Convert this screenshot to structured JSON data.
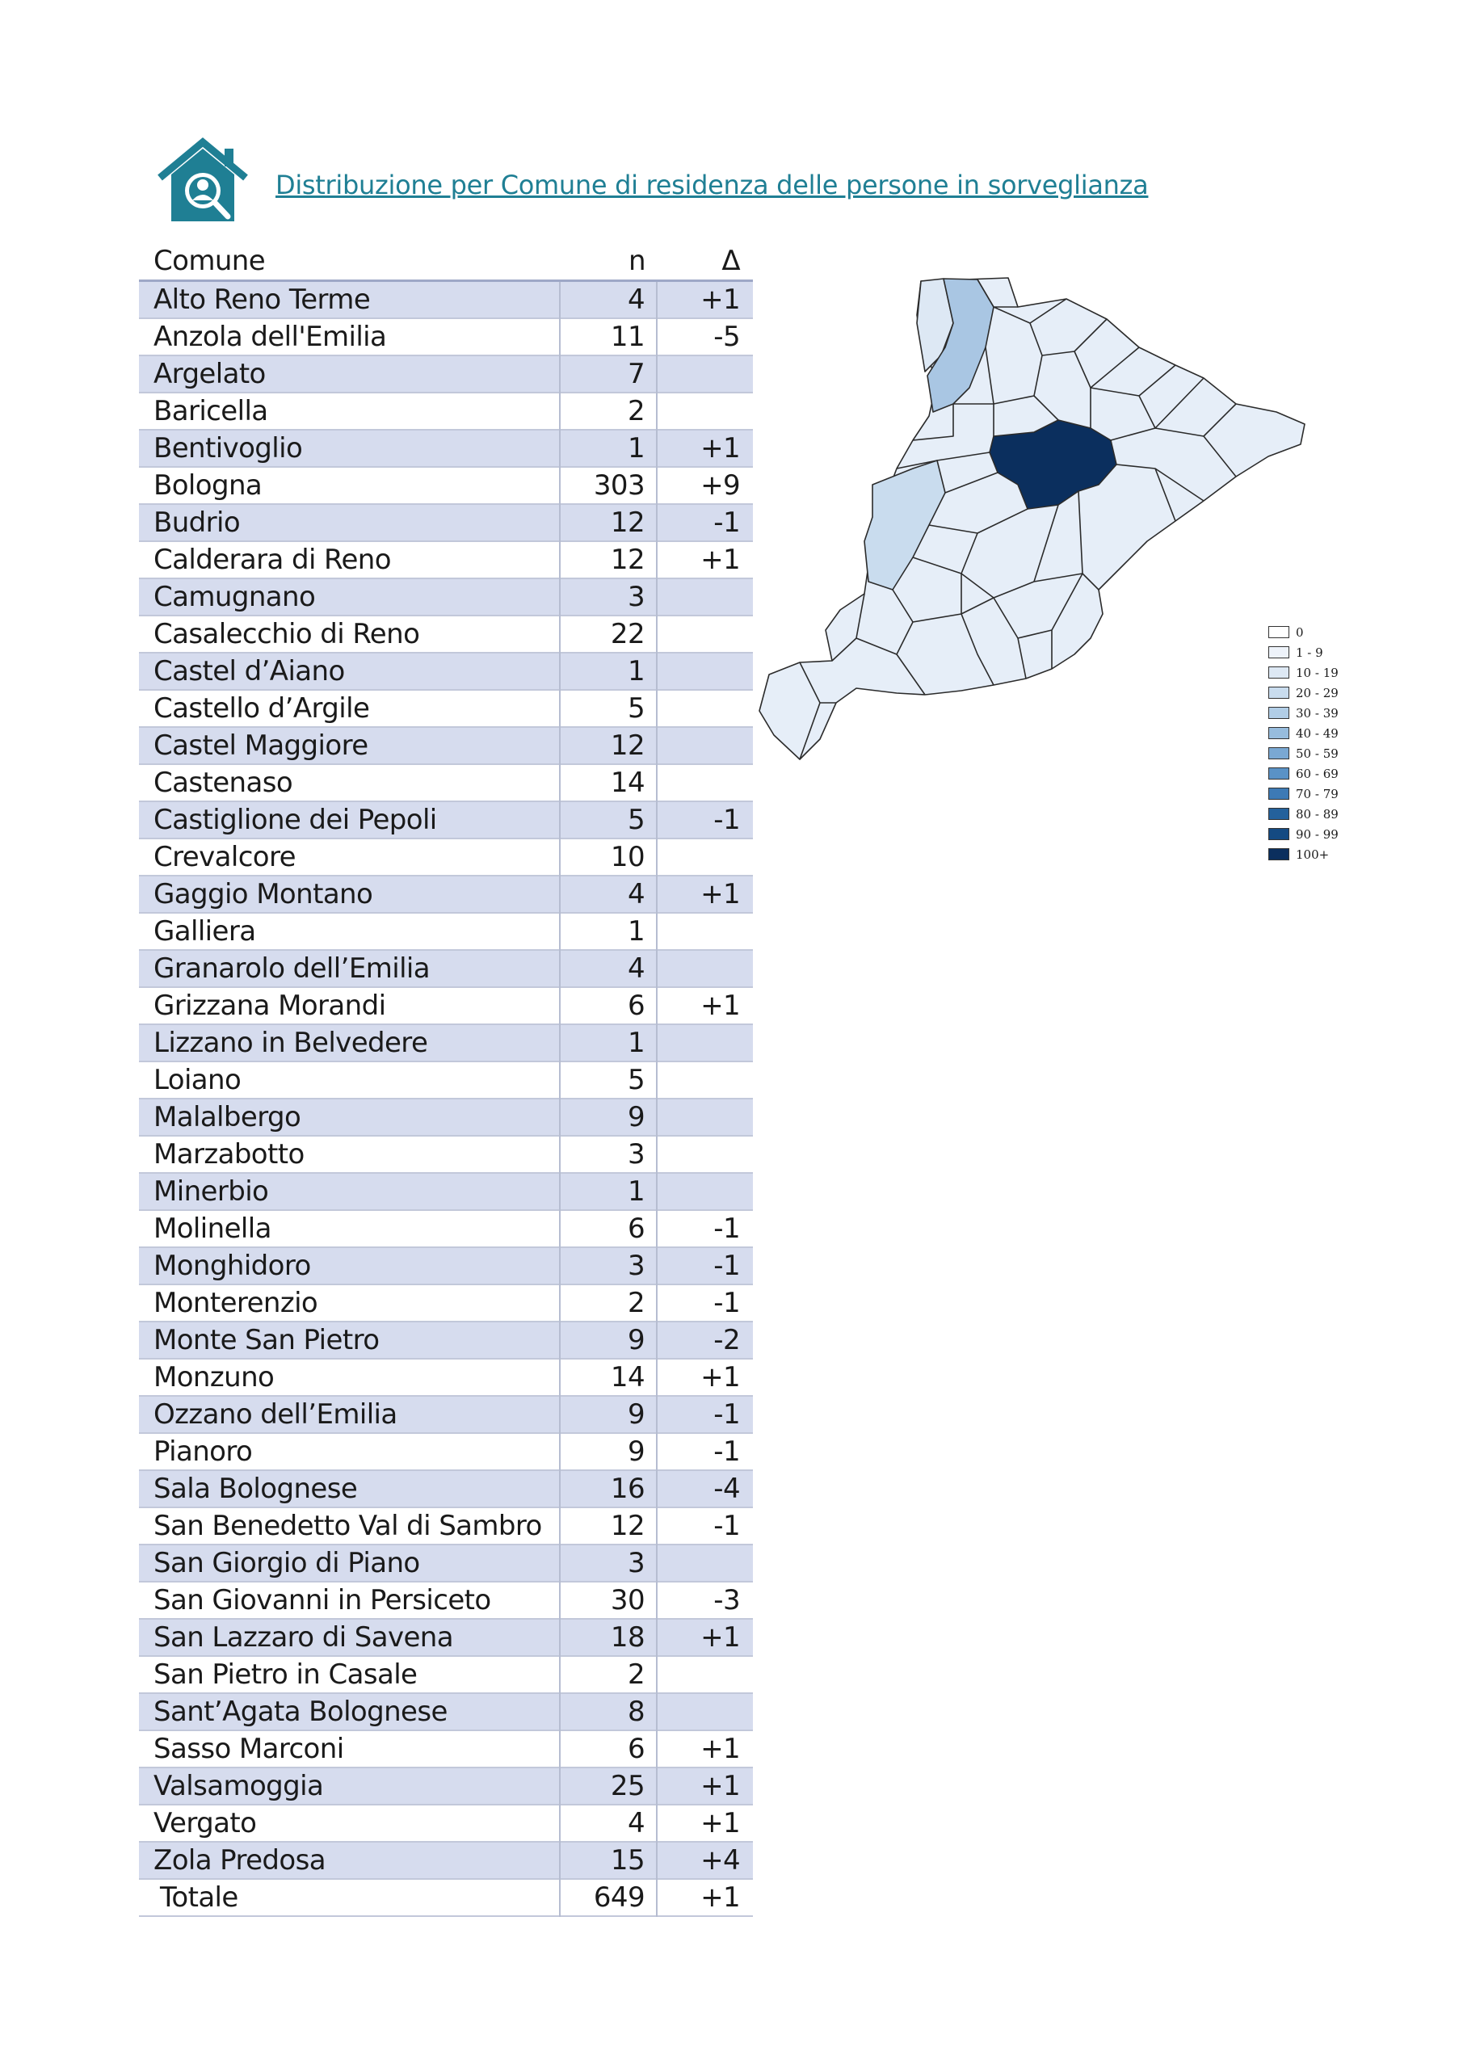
{
  "header": {
    "title": "Distribuzione per Comune di residenza delle persone in sorveglianza",
    "icon": "house-person-icon"
  },
  "table": {
    "columns": [
      "Comune",
      "n",
      "Δ"
    ],
    "rows": [
      [
        "Alto Reno Terme",
        "4",
        "+1"
      ],
      [
        "Anzola dell'Emilia",
        "11",
        "-5"
      ],
      [
        "Argelato",
        "7",
        ""
      ],
      [
        "Baricella",
        "2",
        ""
      ],
      [
        "Bentivoglio",
        "1",
        "+1"
      ],
      [
        "Bologna",
        "303",
        "+9"
      ],
      [
        "Budrio",
        "12",
        "-1"
      ],
      [
        "Calderara di Reno",
        "12",
        "+1"
      ],
      [
        "Camugnano",
        "3",
        ""
      ],
      [
        "Casalecchio di Reno",
        "22",
        ""
      ],
      [
        "Castel d’Aiano",
        "1",
        ""
      ],
      [
        "Castello d’Argile",
        "5",
        ""
      ],
      [
        "Castel Maggiore",
        "12",
        ""
      ],
      [
        "Castenaso",
        "14",
        ""
      ],
      [
        "Castiglione dei Pepoli",
        "5",
        "-1"
      ],
      [
        "Crevalcore",
        "10",
        ""
      ],
      [
        "Gaggio Montano",
        "4",
        "+1"
      ],
      [
        "Galliera",
        "1",
        ""
      ],
      [
        "Granarolo dell’Emilia",
        "4",
        ""
      ],
      [
        "Grizzana Morandi",
        "6",
        "+1"
      ],
      [
        "Lizzano in Belvedere",
        "1",
        ""
      ],
      [
        "Loiano",
        "5",
        ""
      ],
      [
        "Malalbergo",
        "9",
        ""
      ],
      [
        "Marzabotto",
        "3",
        ""
      ],
      [
        "Minerbio",
        "1",
        ""
      ],
      [
        "Molinella",
        "6",
        "-1"
      ],
      [
        "Monghidoro",
        "3",
        "-1"
      ],
      [
        "Monterenzio",
        "2",
        "-1"
      ],
      [
        "Monte San Pietro",
        "9",
        "-2"
      ],
      [
        "Monzuno",
        "14",
        "+1"
      ],
      [
        "Ozzano dell’Emilia",
        "9",
        "-1"
      ],
      [
        "Pianoro",
        "9",
        "-1"
      ],
      [
        "Sala Bolognese",
        "16",
        "-4"
      ],
      [
        "San Benedetto Val di Sambro",
        "12",
        "-1"
      ],
      [
        "San Giorgio di Piano",
        "3",
        ""
      ],
      [
        "San Giovanni in Persiceto",
        "30",
        "-3"
      ],
      [
        "San Lazzaro di Savena",
        "18",
        "+1"
      ],
      [
        "San Pietro in Casale",
        "2",
        ""
      ],
      [
        "Sant’Agata Bolognese",
        "8",
        ""
      ],
      [
        "Sasso Marconi",
        "6",
        "+1"
      ],
      [
        "Valsamoggia",
        "25",
        "+1"
      ],
      [
        "Vergato",
        "4",
        "+1"
      ],
      [
        "Zola Predosa",
        "15",
        "+4"
      ]
    ],
    "total": [
      "Totale",
      "649",
      "+1"
    ]
  },
  "map": {
    "legend": [
      {
        "label": "0",
        "color": "#ffffff"
      },
      {
        "label": "1 - 9",
        "color": "#eef3fa"
      },
      {
        "label": "10 - 19",
        "color": "#dde8f4"
      },
      {
        "label": "20 - 29",
        "color": "#c9dcee"
      },
      {
        "label": "30 - 39",
        "color": "#b1cde6"
      },
      {
        "label": "40 - 49",
        "color": "#97bcdd"
      },
      {
        "label": "50 - 59",
        "color": "#7aa8d3"
      },
      {
        "label": "60 - 69",
        "color": "#5a92c6"
      },
      {
        "label": "70 - 79",
        "color": "#3d7ab5"
      },
      {
        "label": "80 - 89",
        "color": "#24619c"
      },
      {
        "label": "90 - 99",
        "color": "#144a82"
      },
      {
        "label": "100+",
        "color": "#0b2f5e"
      }
    ]
  }
}
